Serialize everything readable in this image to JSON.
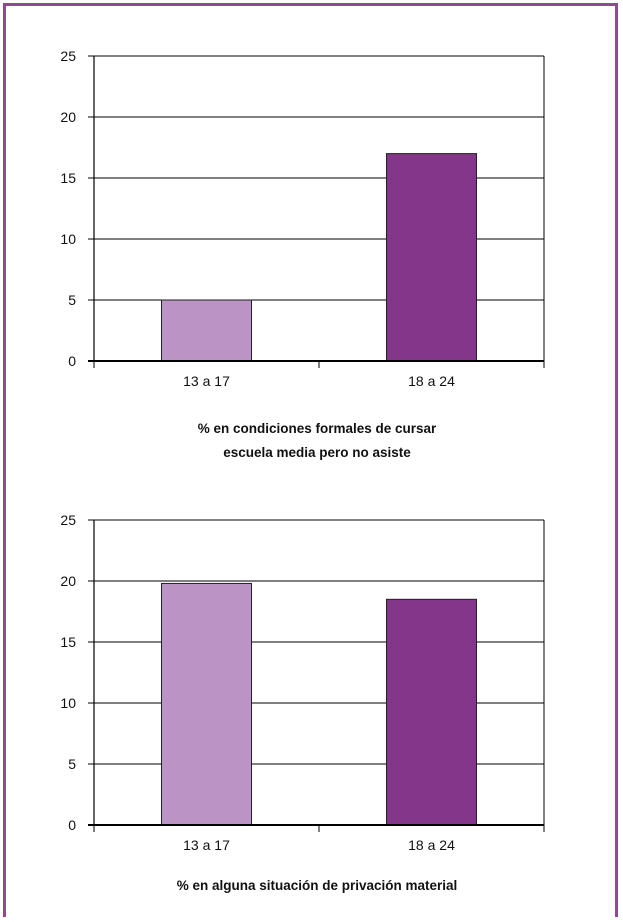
{
  "colors": {
    "frame": "#8e4a93",
    "bar_light": "#bb94c5",
    "bar_dark": "#84378a",
    "axis": "#000000"
  },
  "chart_data": [
    {
      "type": "bar",
      "categories": [
        "13 a 17",
        "18 a 24"
      ],
      "values": [
        5,
        17
      ],
      "ylim": [
        0,
        25
      ],
      "yticks": [
        0,
        5,
        10,
        15,
        20,
        25
      ],
      "grid": true,
      "legend": "none",
      "caption_lines": [
        "% en condiciones formales de cursar",
        "escuela media pero no asiste"
      ],
      "bar_colors": [
        "#bb94c5",
        "#84378a"
      ]
    },
    {
      "type": "bar",
      "categories": [
        "13 a 17",
        "18 a 24"
      ],
      "values": [
        19.8,
        18.5
      ],
      "ylim": [
        0,
        25
      ],
      "yticks": [
        0,
        5,
        10,
        15,
        20,
        25
      ],
      "grid": true,
      "legend": "none",
      "caption_lines": [
        "% en alguna situación de privación material"
      ],
      "bar_colors": [
        "#bb94c5",
        "#84378a"
      ]
    }
  ]
}
